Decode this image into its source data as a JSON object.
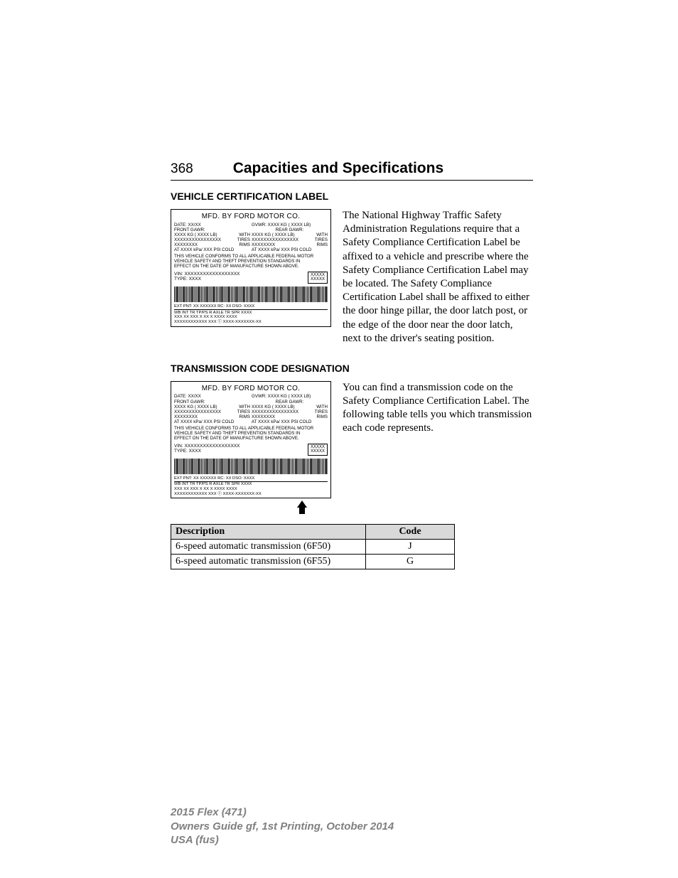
{
  "header": {
    "page_number": "368",
    "title": "Capacities and Specifications"
  },
  "section1": {
    "heading": "VEHICLE CERTIFICATION LABEL",
    "body": "The National Highway Traffic Safety Administration Regulations require that a Safety Compliance Certification Label be affixed to a vehicle and prescribe where the Safety Compliance Certification Label may be located. The Safety Compliance Certification Label shall be affixed to either the door hinge pillar, the door latch post, or the edge of the door near the door latch, next to the driver's seating position."
  },
  "section2": {
    "heading": "TRANSMISSION CODE DESIGNATION",
    "body": "You can find a transmission code on the Safety Compliance Certification Label. The following table tells you which transmission each code represents."
  },
  "cert_label": {
    "mfd": "MFD. BY FORD MOTOR CO.",
    "date": "DATE:   XX/XX",
    "gvwr": "GVWR:    XXXX KG ( XXXX LB)",
    "front_gawr": "FRONT GAWR:",
    "rear_gawr": "REAR GAWR:",
    "kg_lb": "XXXX KG ( XXXX LB)",
    "with": "WITH",
    "tires_x": "XXXXXXXXXXXXXXXX",
    "tires": "TIRES",
    "rims_x": "XXXXXXXX",
    "rims": "RIMS",
    "at": "AT   XXXX  kPa/  XXX    PSI COLD",
    "at_r": "AT    XXXX  kPa/   XXX PSI COLD",
    "conform1": "THIS VEHICLE CONFORMS TO ALL APPLICABLE FEDERAL MOTOR",
    "conform2": "VEHICLE SAFETY AND THEFT PREVENTION STANDARDS IN",
    "conform3": "EFFECT ON THE DATE OF MANUFACTURE SHOWN ABOVE.",
    "vin": "VIN:    XXXXXXXXXXXXXXXXXX",
    "type": "TYPE:  XXXX",
    "box1": "XXXXX",
    "box2": "XXXXX",
    "row1": "EXT PNT:      XX          XXXXXX          RC:  XX       DSO:     XXXX",
    "row2": "  WB       INT TR      TP/PS    R   AXLE   TR   SPR        XXXX",
    "row3": "  XXX        XX          XXX      X     XX    X   XXXX    XXXX",
    "row4": "                    XXXXXXXXXXXX        XXX    ⓒ XXXX-XXXXXXX-XX"
  },
  "table": {
    "headers": [
      "Description",
      "Code"
    ],
    "rows": [
      [
        "6-speed automatic transmission (6F50)",
        "J"
      ],
      [
        "6-speed automatic transmission (6F55)",
        "G"
      ]
    ]
  },
  "footer": {
    "line1a": "2015 Flex ",
    "line1b": "(471)",
    "line2": "Owners Guide gf, 1st Printing, October 2014",
    "line3a": "USA ",
    "line3b": "(fus)"
  }
}
